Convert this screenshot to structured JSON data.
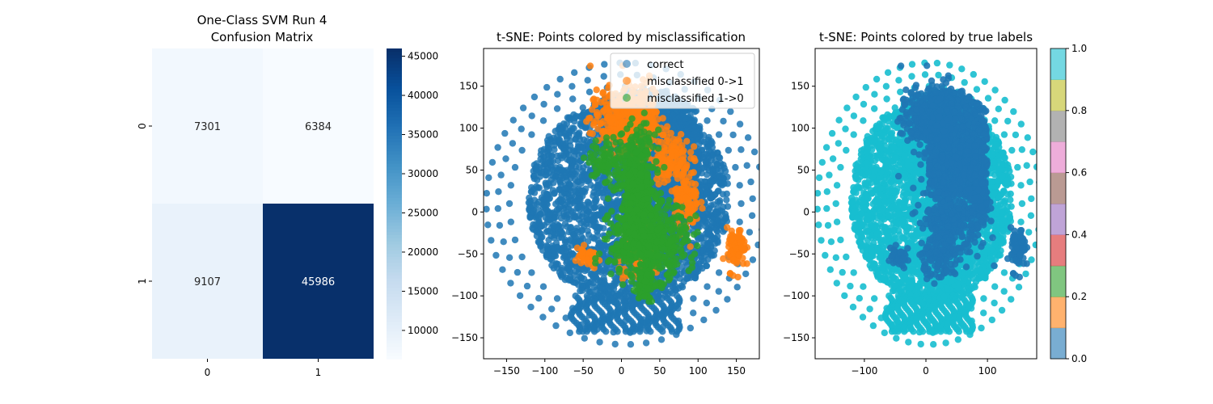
{
  "chart_data": [
    {
      "type": "heatmap",
      "title": [
        "One-Class SVM Run 4",
        "Confusion Matrix"
      ],
      "x_categories": [
        "0",
        "1"
      ],
      "y_categories": [
        "0",
        "1"
      ],
      "values": [
        [
          7301,
          6384
        ],
        [
          9107,
          45986
        ]
      ],
      "colormap": "Blues",
      "colorbar": {
        "range": [
          6384,
          45986
        ],
        "ticks": [
          10000,
          15000,
          20000,
          25000,
          30000,
          35000,
          40000,
          45000
        ]
      }
    },
    {
      "type": "scatter",
      "title": "t-SNE: Points colored by misclassification",
      "xlim": [
        -180,
        180
      ],
      "ylim": [
        -175,
        195
      ],
      "xticks": [
        -150,
        -100,
        -50,
        0,
        50,
        100,
        150
      ],
      "yticks": [
        -150,
        -100,
        -50,
        0,
        50,
        100,
        150
      ],
      "legend_position": "top-right",
      "series": [
        {
          "name": "correct",
          "color": "#1f77b4"
        },
        {
          "name": "misclassified 0->1",
          "color": "#ff7f0e"
        },
        {
          "name": "misclassified 1->0",
          "color": "#2ca02c"
        }
      ]
    },
    {
      "type": "scatter",
      "title": "t-SNE: Points colored by true labels",
      "xlim": [
        -180,
        180
      ],
      "ylim": [
        -175,
        195
      ],
      "xticks": [
        -100,
        0,
        100
      ],
      "yticks": [
        -150,
        -100,
        -50,
        0,
        50,
        100,
        150
      ],
      "colormap": "tab10",
      "label_colors": {
        "0": "#1f77b4",
        "1": "#17becf"
      },
      "colorbar": {
        "range": [
          0,
          1
        ],
        "ticks": [
          0.0,
          0.2,
          0.4,
          0.6,
          0.8,
          1.0
        ],
        "tick_labels": [
          "0.0",
          "0.2",
          "0.4",
          "0.6",
          "0.8",
          "1.0"
        ],
        "colors": [
          "#1f77b4",
          "#ff7f0e",
          "#2ca02c",
          "#d62728",
          "#9467bd",
          "#8c564b",
          "#e377c2",
          "#7f7f7f",
          "#bcbd22",
          "#17becf"
        ]
      }
    }
  ]
}
